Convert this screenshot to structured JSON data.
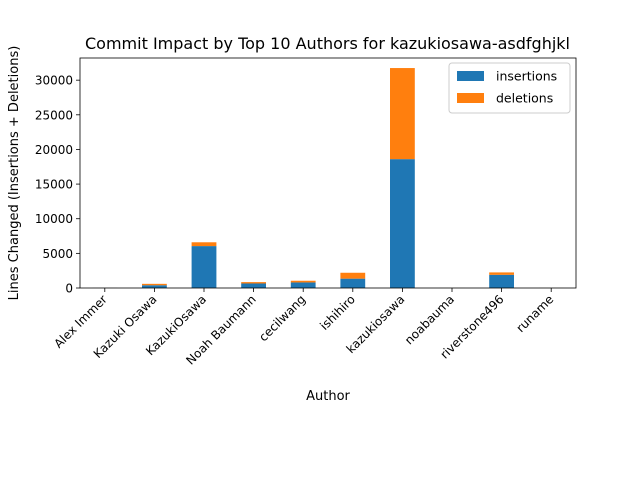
{
  "chart_data": {
    "type": "bar",
    "stacked": true,
    "title": "Commit Impact by Top 10 Authors for kazukiosawa-asdfghjkl",
    "xlabel": "Author",
    "ylabel": "Lines Changed (Insertions + Deletions)",
    "categories": [
      "Alex Immer",
      "Kazuki Osawa",
      "KazukiOsawa",
      "Noah Baumann",
      "cecilwang",
      "ishihiro",
      "kazukiosawa",
      "noabauma",
      "riverstone496",
      "runame"
    ],
    "series": [
      {
        "name": "insertions",
        "color": "#1f77b4",
        "values": [
          10,
          400,
          6050,
          650,
          800,
          1350,
          18600,
          5,
          1900,
          5
        ]
      },
      {
        "name": "deletions",
        "color": "#ff7f0e",
        "values": [
          5,
          200,
          550,
          200,
          250,
          850,
          13150,
          5,
          350,
          5
        ]
      }
    ],
    "ylim": [
      0,
      33200
    ],
    "yticks": [
      0,
      5000,
      10000,
      15000,
      20000,
      25000,
      30000
    ],
    "legend_position": "top-right",
    "grid": false
  }
}
